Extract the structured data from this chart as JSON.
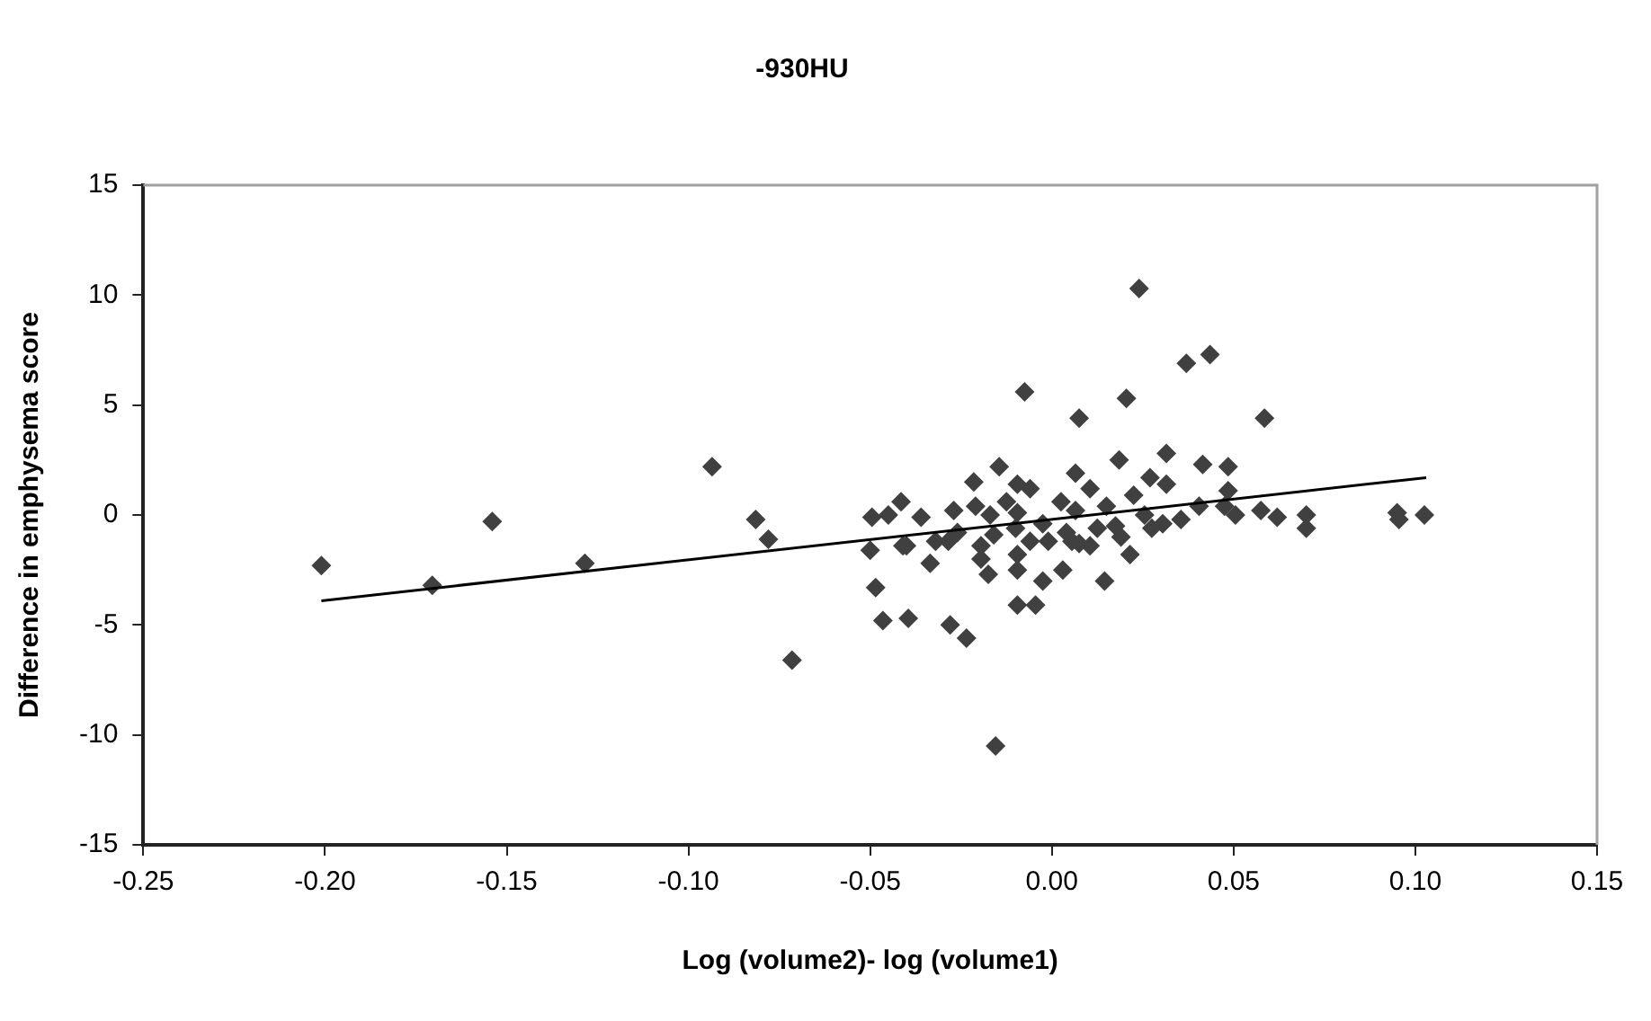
{
  "chart_data": {
    "type": "scatter",
    "title": "-930HU",
    "xlabel": "Log (volume2)- log (volume1)",
    "ylabel": "Difference in emphysema score",
    "xlim": [
      -0.25,
      0.15
    ],
    "xticks": [
      {
        "value": -0.25,
        "label": "-0.25"
      },
      {
        "value": -0.2,
        "label": "-0.20"
      },
      {
        "value": -0.15,
        "label": "-0.15"
      },
      {
        "value": -0.1,
        "label": "-0.10"
      },
      {
        "value": -0.05,
        "label": "-0.05"
      },
      {
        "value": 0,
        "label": "0.00"
      },
      {
        "value": 0.05,
        "label": "0.05"
      },
      {
        "value": 0.1,
        "label": "0.10"
      },
      {
        "value": 0.15,
        "label": "0.15"
      }
    ],
    "ylim": [
      -15,
      15
    ],
    "yticks": [
      -15,
      -10,
      -5,
      0,
      5,
      10,
      15
    ],
    "grid": false,
    "legend": false,
    "marker": "diamond",
    "series": [
      {
        "type": "scatter",
        "color": "#404040",
        "x": [
          -0.201,
          -0.1705,
          -0.154,
          -0.1285,
          -0.0935,
          -0.0815,
          -0.078,
          -0.0715,
          0.024,
          -0.0155,
          -0.0485,
          -0.0465,
          -0.0395,
          -0.028,
          -0.0235,
          -0.0095,
          -0.0045,
          0.0145,
          -0.0335,
          -0.04,
          -0.05,
          0.0435,
          0.037,
          -0.0075,
          0.0075,
          0.0205,
          0.0585,
          0.0185,
          0.0315,
          0.0415,
          0.0485,
          -0.0145,
          -0.0215,
          0.0065,
          -0.0415,
          -0.0095,
          0.027,
          0.0315,
          0.0485,
          0.0505,
          0.0575,
          0.062,
          0.07,
          0.07,
          0.095,
          0.0955,
          0.1025,
          -0.0495,
          -0.045,
          -0.036,
          -0.027,
          -0.021,
          -0.017,
          -0.0125,
          -0.0095,
          -0.006,
          -0.0025,
          0.0025,
          0.0065,
          0.0105,
          0.015,
          0.0175,
          0.0225,
          0.0255,
          0.0305,
          0.0355,
          0.0405,
          0.0475,
          -0.032,
          -0.026,
          -0.0195,
          -0.016,
          -0.01,
          -0.006,
          -0.001,
          0.004,
          0.0075,
          0.0125,
          0.019,
          0.0275,
          -0.041,
          -0.0195,
          -0.0175,
          -0.0095,
          -0.0025,
          0.003,
          -0.0095,
          0.0105,
          0.0215,
          0.0055,
          -0.0285
        ],
        "values": [
          -2.3,
          -3.2,
          -0.3,
          -2.2,
          2.2,
          -0.2,
          -1.1,
          -6.6,
          10.3,
          -10.5,
          -3.3,
          -4.8,
          -4.7,
          -5.0,
          -5.6,
          -4.1,
          -4.1,
          -3.0,
          -2.2,
          -1.4,
          -1.6,
          7.3,
          6.9,
          5.6,
          4.4,
          5.3,
          4.4,
          2.5,
          2.8,
          2.3,
          2.2,
          2.2,
          1.5,
          1.9,
          0.6,
          1.4,
          1.7,
          1.4,
          1.1,
          0,
          0.2,
          -0.1,
          0,
          -0.6,
          0.1,
          -0.2,
          0,
          -0.1,
          0,
          -0.1,
          0.2,
          0.4,
          0,
          0.6,
          0.1,
          1.2,
          -0.4,
          0.6,
          0.2,
          1.2,
          0.4,
          -0.5,
          0.9,
          0,
          -0.4,
          -0.2,
          0.4,
          0.4,
          -1.2,
          -0.8,
          -1.4,
          -0.9,
          -0.6,
          -1.2,
          -1.2,
          -0.8,
          -1.3,
          -0.6,
          -1.0,
          -0.6,
          -1.4,
          -2.0,
          -2.7,
          -2.5,
          -3.0,
          -2.5,
          -1.8,
          -1.4,
          -1.8,
          -1.2,
          -1.2
        ]
      },
      {
        "type": "line",
        "color": "#000000",
        "marker": "none",
        "x": [
          -0.201,
          0.103
        ],
        "values": [
          -3.9,
          1.7
        ]
      }
    ]
  }
}
